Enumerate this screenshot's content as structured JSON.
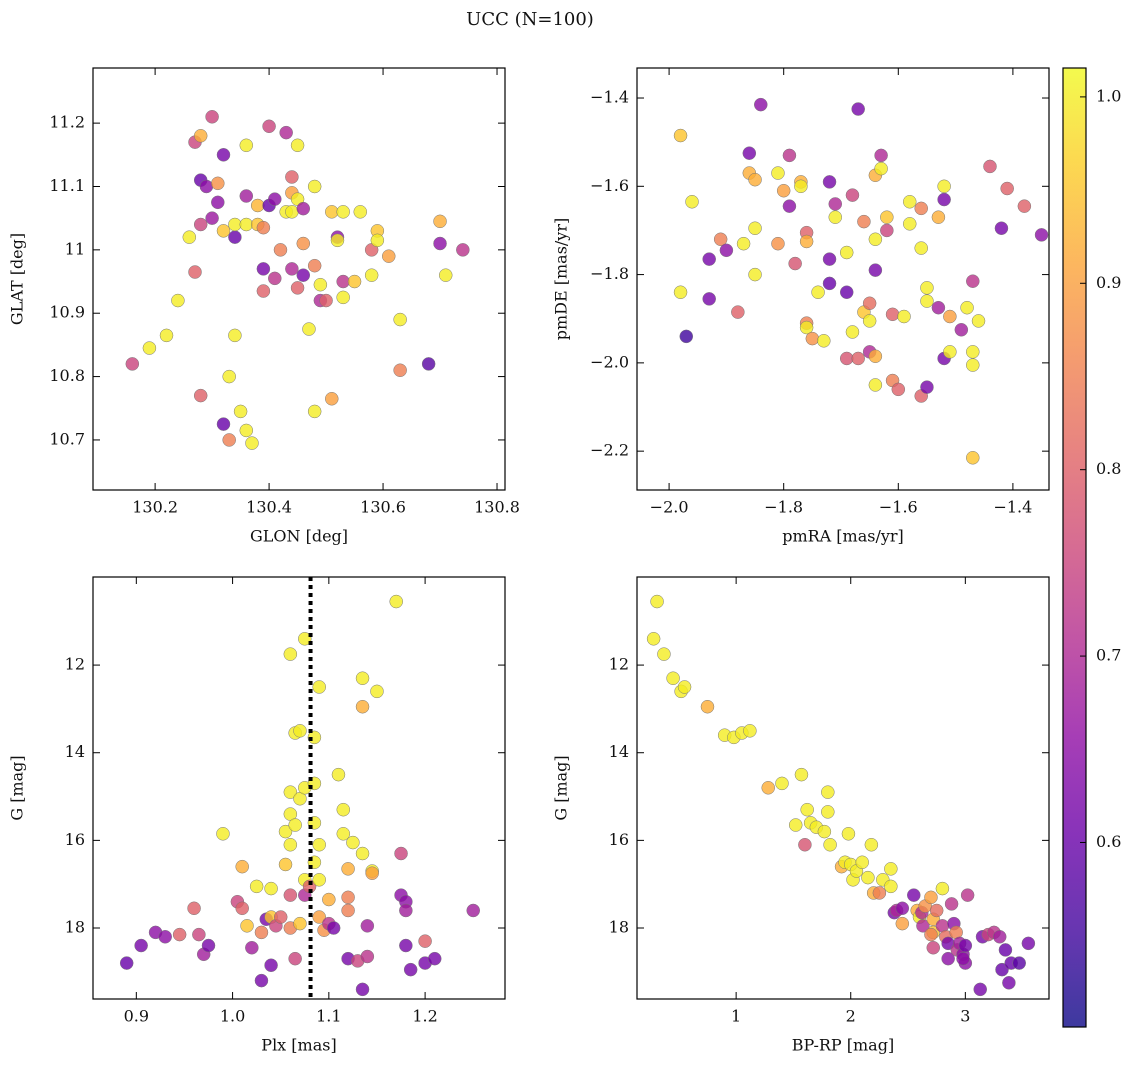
{
  "title": "UCC (N=100)",
  "colorbar": {
    "colormap": "plasma",
    "clim": [
      0.501,
      1.0155
    ],
    "ticks": [
      0.6,
      0.7,
      0.8,
      0.9,
      {
        "value": 1,
        "label": "1.0"
      }
    ]
  },
  "chart_data": [
    {
      "type": "scatter",
      "xlabel": "GLON [deg]",
      "ylabel": "GLAT [deg]",
      "xlim": [
        130.091,
        130.814
      ],
      "ylim": [
        10.621,
        11.287
      ],
      "xticks": [
        130.2,
        130.4,
        130.6,
        130.8
      ],
      "yticks": [
        10.7,
        10.8,
        10.9,
        11.0,
        11.1,
        11.2
      ],
      "x": [
        130.16,
        130.19,
        130.22,
        130.24,
        130.26,
        130.27,
        130.27,
        130.28,
        130.28,
        130.28,
        130.29,
        130.28,
        130.3,
        130.3,
        130.31,
        130.31,
        130.32,
        130.32,
        130.32,
        130.33,
        130.33,
        130.34,
        130.34,
        130.34,
        130.35,
        130.36,
        130.36,
        130.36,
        130.36,
        130.37,
        130.38,
        130.38,
        130.39,
        130.39,
        130.39,
        130.4,
        130.4,
        130.41,
        130.41,
        130.42,
        130.43,
        130.43,
        130.44,
        130.44,
        130.44,
        130.44,
        130.45,
        130.45,
        130.45,
        130.46,
        130.46,
        130.46,
        130.47,
        130.48,
        130.48,
        130.48,
        130.49,
        130.49,
        130.5,
        130.51,
        130.51,
        130.52,
        130.52,
        130.53,
        130.53,
        130.53,
        130.55,
        130.56,
        130.58,
        130.58,
        130.59,
        130.59,
        130.61,
        130.63,
        130.63,
        130.68,
        130.7,
        130.7,
        130.71,
        130.74
      ],
      "values": [
        10.82,
        10.845,
        10.865,
        10.92,
        11.02,
        10.965,
        11.17,
        11.18,
        10.77,
        11.11,
        11.1,
        11.04,
        11.21,
        11.05,
        11.075,
        11.105,
        11.15,
        11.03,
        10.725,
        10.8,
        10.7,
        11.02,
        11.04,
        10.865,
        10.745,
        11.04,
        11.165,
        11.085,
        10.715,
        10.695,
        11.04,
        11.07,
        11.035,
        10.97,
        10.935,
        11.195,
        11.07,
        11.08,
        10.955,
        11.0,
        11.06,
        11.185,
        11.09,
        11.115,
        10.97,
        11.06,
        11.165,
        11.08,
        10.94,
        10.96,
        11.01,
        11.065,
        10.875,
        10.975,
        11.1,
        10.745,
        10.945,
        10.92,
        10.92,
        10.765,
        11.06,
        11.02,
        11.015,
        11.06,
        10.95,
        10.925,
        10.95,
        11.06,
        10.96,
        11.0,
        11.03,
        11.015,
        10.99,
        10.89,
        10.81,
        10.82,
        11.01,
        11.045,
        10.96,
        11.0
      ],
      "c": [
        0.75,
        1.0,
        1.0,
        1.0,
        1.0,
        0.8,
        0.75,
        0.92,
        0.8,
        0.6,
        0.65,
        0.75,
        0.75,
        0.67,
        0.65,
        0.88,
        0.62,
        0.95,
        0.6,
        1.0,
        0.85,
        0.6,
        1.0,
        1.0,
        1.0,
        1.0,
        1.0,
        0.68,
        1.0,
        1.0,
        0.95,
        0.93,
        0.85,
        0.62,
        0.8,
        0.75,
        0.6,
        0.65,
        0.72,
        0.85,
        1.0,
        0.7,
        0.9,
        0.8,
        0.7,
        1.0,
        1.0,
        1.0,
        0.8,
        0.62,
        0.88,
        0.68,
        1.0,
        0.85,
        1.0,
        1.0,
        1.0,
        0.7,
        0.8,
        0.9,
        0.95,
        0.65,
        1.0,
        1.0,
        0.72,
        1.0,
        0.95,
        1.0,
        1.0,
        0.8,
        0.95,
        1.0,
        0.9,
        1.0,
        0.85,
        0.58,
        0.65,
        0.92,
        1.0,
        0.72
      ]
    },
    {
      "type": "scatter",
      "xlabel": "pmRA [mas/yr]",
      "ylabel": "pmDE [mas/yr]",
      "xlim": [
        -2.056,
        -1.337
      ],
      "ylim": [
        -2.288,
        -1.332
      ],
      "xticks": [
        {
          "value": -2.0,
          "label": "−2.0"
        },
        {
          "value": -1.8,
          "label": "−1.8"
        },
        {
          "value": -1.6,
          "label": "−1.6"
        },
        {
          "value": -1.4,
          "label": "−1.4"
        }
      ],
      "yticks": [
        {
          "value": -2.2,
          "label": "−2.2"
        },
        {
          "value": -2.0,
          "label": "−2.0"
        },
        {
          "value": -1.8,
          "label": "−1.8"
        },
        {
          "value": -1.6,
          "label": "−1.6"
        },
        {
          "value": -1.4,
          "label": "−1.4"
        }
      ],
      "x": [
        -1.98,
        -1.98,
        -1.97,
        -1.96,
        -1.93,
        -1.93,
        -1.91,
        -1.9,
        -1.88,
        -1.87,
        -1.86,
        -1.86,
        -1.84,
        -1.85,
        -1.85,
        -1.85,
        -1.81,
        -1.81,
        -1.8,
        -1.79,
        -1.79,
        -1.78,
        -1.77,
        -1.77,
        -1.76,
        -1.76,
        -1.76,
        -1.76,
        -1.75,
        -1.74,
        -1.73,
        -1.72,
        -1.72,
        -1.72,
        -1.71,
        -1.71,
        -1.69,
        -1.69,
        -1.68,
        -1.69,
        -1.68,
        -1.67,
        -1.67,
        -1.66,
        -1.66,
        -1.65,
        -1.65,
        -1.64,
        -1.64,
        -1.64,
        -1.65,
        -1.64,
        -1.64,
        -1.63,
        -1.63,
        -1.62,
        -1.62,
        -1.61,
        -1.61,
        -1.6,
        -1.59,
        -1.58,
        -1.58,
        -1.56,
        -1.56,
        -1.56,
        -1.55,
        -1.55,
        -1.55,
        -1.53,
        -1.53,
        -1.52,
        -1.51,
        -1.51,
        -1.49,
        -1.48,
        -1.47,
        -1.47,
        -1.47,
        -1.47,
        -1.46,
        -1.44,
        -1.42,
        -1.41,
        -1.38,
        -1.35,
        -1.52,
        -1.52
      ],
      "values": [
        -1.485,
        -1.84,
        -1.94,
        -1.635,
        -1.765,
        -1.855,
        -1.72,
        -1.745,
        -1.885,
        -1.73,
        -1.525,
        -1.57,
        -1.415,
        -1.585,
        -1.695,
        -1.8,
        -1.73,
        -1.57,
        -1.61,
        -1.53,
        -1.645,
        -1.775,
        -1.59,
        -1.6,
        -1.705,
        -1.725,
        -1.91,
        -1.92,
        -1.945,
        -1.84,
        -1.95,
        -1.59,
        -1.765,
        -1.82,
        -1.67,
        -1.64,
        -1.75,
        -1.84,
        -1.93,
        -1.99,
        -1.62,
        -1.99,
        -1.425,
        -1.68,
        -1.885,
        -1.865,
        -1.905,
        -1.575,
        -1.72,
        -1.79,
        -1.975,
        -1.985,
        -2.05,
        -1.53,
        -1.56,
        -1.67,
        -1.7,
        -1.89,
        -2.04,
        -2.06,
        -1.895,
        -1.635,
        -1.685,
        -1.65,
        -1.74,
        -2.075,
        -1.83,
        -1.86,
        -2.055,
        -1.875,
        -1.67,
        -1.99,
        -1.975,
        -1.895,
        -1.925,
        -1.875,
        -1.815,
        -1.975,
        -2.005,
        -2.215,
        -1.905,
        -1.555,
        -1.695,
        -1.605,
        -1.645,
        -1.71,
        -1.6,
        -1.63
      ],
      "c": [
        0.95,
        1.0,
        0.55,
        1.0,
        0.62,
        0.62,
        0.85,
        0.65,
        0.8,
        1.0,
        0.62,
        0.92,
        0.65,
        0.92,
        1.0,
        1.0,
        0.88,
        1.0,
        0.9,
        0.72,
        0.65,
        0.78,
        0.92,
        1.0,
        0.8,
        0.92,
        0.85,
        1.0,
        0.88,
        1.0,
        1.0,
        0.62,
        0.62,
        0.6,
        1.0,
        0.7,
        1.0,
        0.6,
        1.0,
        0.78,
        0.75,
        0.8,
        0.62,
        0.85,
        0.95,
        0.82,
        1.0,
        0.92,
        1.0,
        0.62,
        0.7,
        0.92,
        1.0,
        0.7,
        1.0,
        0.95,
        0.75,
        0.8,
        0.85,
        0.8,
        1.0,
        1.0,
        1.0,
        0.85,
        1.0,
        0.8,
        1.0,
        1.0,
        0.62,
        0.68,
        0.92,
        0.62,
        1.0,
        0.9,
        0.68,
        1.0,
        0.72,
        1.0,
        1.0,
        0.95,
        1.0,
        0.78,
        0.62,
        0.8,
        0.8,
        0.65,
        1.0,
        0.62
      ]
    },
    {
      "type": "scatter",
      "xlabel": "Plx [mas]",
      "ylabel": "G [mag]",
      "xlim": [
        0.855,
        1.283
      ],
      "ylim": [
        19.62,
        9.99
      ],
      "xticks": [
        0.9,
        {
          "value": 1,
          "label": "1.0"
        },
        1.1,
        1.2
      ],
      "yticks": [
        12,
        14,
        16,
        18
      ],
      "vlines": [
        1.081
      ],
      "x": [
        0.89,
        0.905,
        0.92,
        0.93,
        0.945,
        0.96,
        0.965,
        0.97,
        0.975,
        0.99,
        1.005,
        1.01,
        1.01,
        1.015,
        1.02,
        1.025,
        1.03,
        1.03,
        1.035,
        1.04,
        1.04,
        1.04,
        1.045,
        1.05,
        1.055,
        1.055,
        1.06,
        1.06,
        1.06,
        1.06,
        1.06,
        1.06,
        1.065,
        1.065,
        1.065,
        1.07,
        1.07,
        1.07,
        1.075,
        1.075,
        1.075,
        1.075,
        1.08,
        1.085,
        1.085,
        1.085,
        1.085,
        1.09,
        1.09,
        1.09,
        1.09,
        1.095,
        1.1,
        1.11,
        1.115,
        1.115,
        1.12,
        1.12,
        1.12,
        1.12,
        1.125,
        1.13,
        1.135,
        1.135,
        1.135,
        1.135,
        1.14,
        1.14,
        1.145,
        1.15,
        1.17,
        1.175,
        1.175,
        1.18,
        1.18,
        1.18,
        1.185,
        1.2,
        1.2,
        1.21,
        1.25,
        1.145,
        1.1,
        1.105
      ],
      "values": [
        18.8,
        18.4,
        18.1,
        18.2,
        18.15,
        17.55,
        18.15,
        18.6,
        18.4,
        15.85,
        17.4,
        17.55,
        16.6,
        17.95,
        18.45,
        17.05,
        18.1,
        19.2,
        17.8,
        17.1,
        18.85,
        17.75,
        17.95,
        17.75,
        16.55,
        15.8,
        11.75,
        14.9,
        15.4,
        16.1,
        17.25,
        18.0,
        15.65,
        13.55,
        18.7,
        13.5,
        17.9,
        15.05,
        17.25,
        11.4,
        14.8,
        16.9,
        17.05,
        15.6,
        16.5,
        13.65,
        14.7,
        12.5,
        16.1,
        16.9,
        17.75,
        18.05,
        17.9,
        14.5,
        15.3,
        15.85,
        17.3,
        17.6,
        16.65,
        18.7,
        16.05,
        18.75,
        12.3,
        12.95,
        16.3,
        19.4,
        17.95,
        18.65,
        16.7,
        12.6,
        10.55,
        16.3,
        17.25,
        17.4,
        17.6,
        18.4,
        18.95,
        18.3,
        18.8,
        18.7,
        17.6,
        16.75,
        17.35,
        18.0
      ],
      "c": [
        0.6,
        0.62,
        0.65,
        0.65,
        0.8,
        0.8,
        0.75,
        0.68,
        0.62,
        1.0,
        0.75,
        0.8,
        0.92,
        0.95,
        0.68,
        1.0,
        0.85,
        0.62,
        0.62,
        1.0,
        0.62,
        0.95,
        0.75,
        0.8,
        0.95,
        1.0,
        1.0,
        1.0,
        1.0,
        1.0,
        0.78,
        0.85,
        1.0,
        1.0,
        0.75,
        1.0,
        0.95,
        1.0,
        0.7,
        1.0,
        1.0,
        1.0,
        0.8,
        1.0,
        1.0,
        1.0,
        1.0,
        1.0,
        1.0,
        1.0,
        0.9,
        0.88,
        0.72,
        1.0,
        1.0,
        1.0,
        0.85,
        0.85,
        0.92,
        0.62,
        1.0,
        0.75,
        1.0,
        0.92,
        1.0,
        0.62,
        0.68,
        0.72,
        1.0,
        1.0,
        1.0,
        0.75,
        0.65,
        0.65,
        0.68,
        0.62,
        0.62,
        0.8,
        0.62,
        0.62,
        0.68,
        0.9,
        0.92,
        0.62
      ]
    },
    {
      "type": "scatter",
      "xlabel": "BP-RP [mag]",
      "ylabel": "G [mag]",
      "xlim": [
        0.135,
        3.73
      ],
      "ylim": [
        19.62,
        9.99
      ],
      "xticks": [
        1,
        2,
        3
      ],
      "yticks": [
        12,
        14,
        16,
        18
      ],
      "x": [
        0.28,
        0.31,
        0.37,
        0.45,
        0.52,
        0.55,
        0.75,
        0.9,
        0.98,
        1.05,
        1.12,
        1.28,
        1.4,
        1.52,
        1.57,
        1.6,
        1.62,
        1.65,
        1.7,
        1.77,
        1.8,
        1.82,
        1.8,
        1.92,
        1.95,
        1.98,
        2.0,
        2.02,
        2.05,
        2.1,
        2.15,
        2.18,
        2.2,
        2.25,
        2.28,
        2.35,
        2.35,
        2.38,
        2.4,
        2.45,
        2.45,
        2.55,
        2.58,
        2.6,
        2.62,
        2.63,
        2.65,
        2.7,
        2.72,
        2.72,
        2.72,
        2.75,
        2.8,
        2.8,
        2.83,
        2.85,
        2.85,
        2.88,
        2.9,
        2.92,
        2.93,
        2.95,
        2.98,
        3.0,
        3.0,
        3.02,
        3.13,
        3.15,
        3.2,
        3.25,
        3.3,
        3.32,
        3.35,
        3.38,
        3.4,
        3.47,
        3.55,
        2.98,
        2.7
      ],
      "values": [
        11.4,
        10.55,
        11.75,
        12.3,
        12.6,
        12.5,
        12.95,
        13.6,
        13.65,
        13.55,
        13.5,
        14.8,
        14.7,
        15.65,
        14.5,
        16.1,
        15.3,
        15.6,
        15.7,
        15.8,
        14.9,
        16.1,
        15.35,
        16.6,
        16.5,
        15.85,
        16.55,
        16.9,
        16.7,
        16.5,
        16.85,
        16.1,
        17.2,
        17.2,
        16.9,
        16.65,
        17.05,
        17.65,
        17.6,
        17.55,
        17.9,
        17.25,
        17.6,
        17.75,
        17.65,
        17.95,
        17.5,
        17.3,
        18.1,
        17.8,
        18.45,
        17.6,
        17.1,
        17.95,
        18.2,
        18.7,
        18.35,
        17.45,
        17.9,
        18.1,
        18.5,
        18.35,
        18.6,
        18.4,
        18.8,
        17.25,
        19.4,
        18.2,
        18.15,
        18.1,
        18.2,
        18.95,
        18.5,
        19.25,
        18.8,
        18.8,
        18.35,
        18.7,
        18.15
      ],
      "c": [
        1.0,
        1.0,
        1.0,
        1.0,
        1.0,
        1.0,
        0.92,
        1.0,
        1.0,
        1.0,
        1.0,
        0.92,
        1.0,
        1.0,
        1.0,
        0.78,
        1.0,
        1.0,
        1.0,
        1.0,
        1.0,
        1.0,
        1.0,
        0.92,
        1.0,
        1.0,
        1.0,
        1.0,
        1.0,
        1.0,
        1.0,
        1.0,
        0.92,
        0.85,
        1.0,
        1.0,
        1.0,
        0.62,
        0.7,
        0.65,
        0.9,
        0.62,
        0.92,
        1.0,
        0.7,
        0.7,
        0.88,
        0.9,
        0.95,
        0.92,
        0.75,
        0.82,
        1.0,
        0.72,
        0.82,
        0.65,
        0.62,
        0.72,
        0.65,
        0.85,
        0.72,
        0.68,
        0.65,
        0.62,
        0.65,
        0.72,
        0.62,
        0.62,
        0.75,
        0.72,
        0.68,
        0.6,
        0.6,
        0.62,
        0.6,
        0.58,
        0.62,
        0.65,
        0.85
      ]
    }
  ]
}
